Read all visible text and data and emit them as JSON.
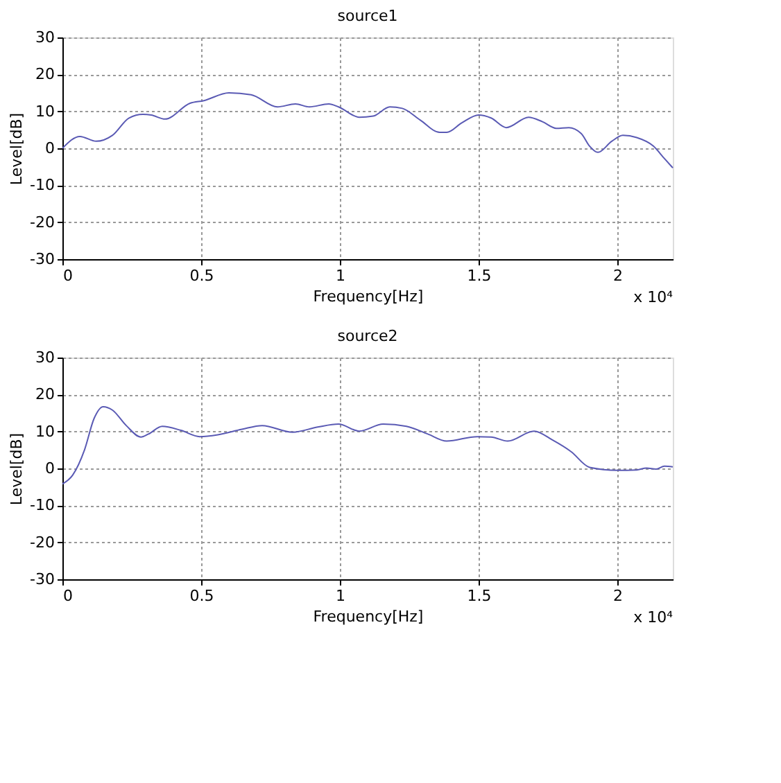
{
  "chart_data": [
    {
      "type": "line",
      "title": "source1",
      "xlabel": "Frequency[Hz]",
      "ylabel": "Level[dB]",
      "x": [
        0,
        0.063,
        0.122,
        0.18,
        0.24,
        0.29,
        0.32,
        0.37,
        0.46,
        0.51,
        0.6,
        0.68,
        0.775,
        0.84,
        0.89,
        0.96,
        0.995,
        1.07,
        1.12,
        1.18,
        1.225,
        1.29,
        1.36,
        1.385,
        1.44,
        1.5,
        1.545,
        1.6,
        1.68,
        1.73,
        1.78,
        1.825,
        1.87,
        1.9,
        1.93,
        1.98,
        2.02,
        2.07,
        2.13,
        2.17,
        2.2
      ],
      "series": [
        {
          "color": "#5a5ab4",
          "values": [
            0,
            3.2,
            1.9,
            3.5,
            8.2,
            9.2,
            9.0,
            7.9,
            12.2,
            12.9,
            15,
            14.5,
            11.2,
            12,
            11.2,
            12,
            11.2,
            8.4,
            8.7,
            11.2,
            10.8,
            7.6,
            4.3,
            4.3,
            6.9,
            9.0,
            8.2,
            5.6,
            8.4,
            7.2,
            5.4,
            5.6,
            4.0,
            0.6,
            -1.1,
            1.9,
            3.5,
            2.9,
            0.6,
            -2.8,
            -5.3
          ]
        }
      ],
      "xlim": [
        0,
        2.2
      ],
      "xticks": [
        0,
        0.5,
        1,
        1.5,
        2
      ],
      "ylim": [
        -30,
        30
      ],
      "yticks": [
        -30,
        -20,
        -10,
        0,
        10,
        20,
        30
      ],
      "grid": true,
      "annotations": [
        "x 10⁴"
      ]
    },
    {
      "type": "line",
      "title": "source2",
      "xlabel": "Frequency[Hz]",
      "ylabel": "Level[dB]",
      "x": [
        0,
        0.037,
        0.08,
        0.114,
        0.147,
        0.18,
        0.23,
        0.283,
        0.31,
        0.36,
        0.427,
        0.495,
        0.56,
        0.647,
        0.72,
        0.83,
        0.92,
        0.995,
        1.07,
        1.156,
        1.24,
        1.317,
        1.385,
        1.495,
        1.545,
        1.605,
        1.7,
        1.766,
        1.834,
        1.9,
        2.0,
        2.07,
        2.105,
        2.14,
        2.17,
        2.2
      ],
      "series": [
        {
          "color": "#5a5ab4",
          "values": [
            -4.2,
            -1.8,
            5.1,
            13.5,
            16.7,
            15.8,
            11.6,
            8.5,
            9.3,
            11.4,
            10.3,
            8.6,
            9.1,
            10.6,
            11.6,
            9.8,
            11.2,
            12,
            10.1,
            12,
            11.4,
            9.3,
            7.4,
            8.6,
            8.5,
            7.4,
            10.1,
            7.7,
            4.5,
            0.3,
            -0.5,
            -0.4,
            0.1,
            -0.2,
            0.6,
            0.4
          ]
        }
      ],
      "xlim": [
        0,
        2.2
      ],
      "xticks": [
        0,
        0.5,
        1,
        1.5,
        2
      ],
      "ylim": [
        -30,
        30
      ],
      "yticks": [
        -30,
        -20,
        -10,
        0,
        10,
        20,
        30
      ],
      "grid": true,
      "annotations": [
        "x 10⁴"
      ]
    }
  ]
}
